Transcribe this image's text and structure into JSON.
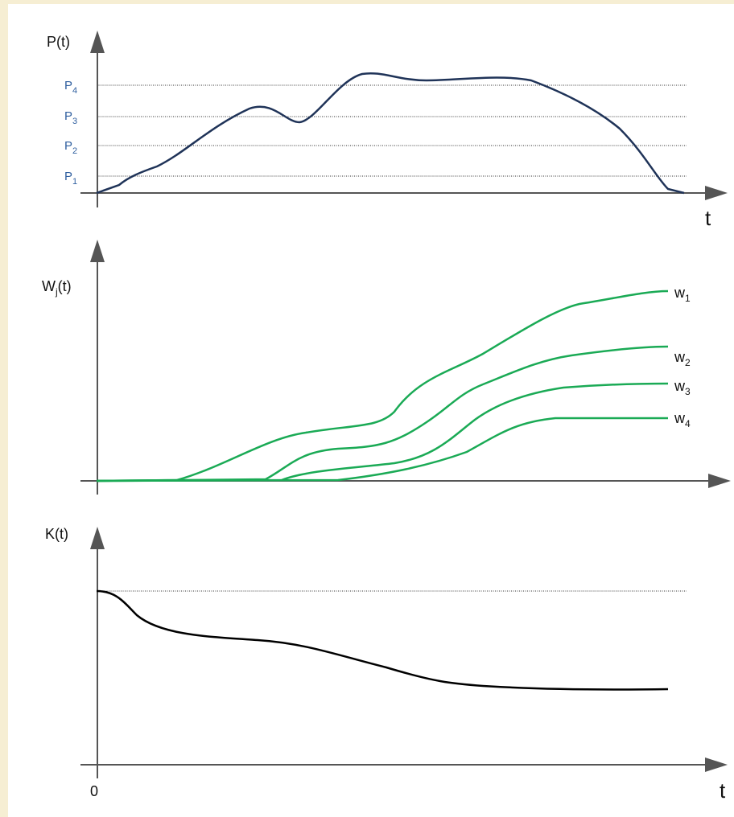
{
  "panels": [
    {
      "y_label": "P(t)",
      "x_label": "t",
      "levels": [
        {
          "base": "P",
          "sub": "1"
        },
        {
          "base": "P",
          "sub": "2"
        },
        {
          "base": "P",
          "sub": "3"
        },
        {
          "base": "P",
          "sub": "4"
        }
      ]
    },
    {
      "y_label": {
        "base": "W",
        "sub": "j",
        "tail": "(t)"
      },
      "curves": [
        {
          "base": "w",
          "sub": "1"
        },
        {
          "base": "w",
          "sub": "2"
        },
        {
          "base": "w",
          "sub": "3"
        },
        {
          "base": "w",
          "sub": "4"
        }
      ]
    },
    {
      "y_label": "K(t)",
      "x_label": "t",
      "origin": "0"
    }
  ]
}
